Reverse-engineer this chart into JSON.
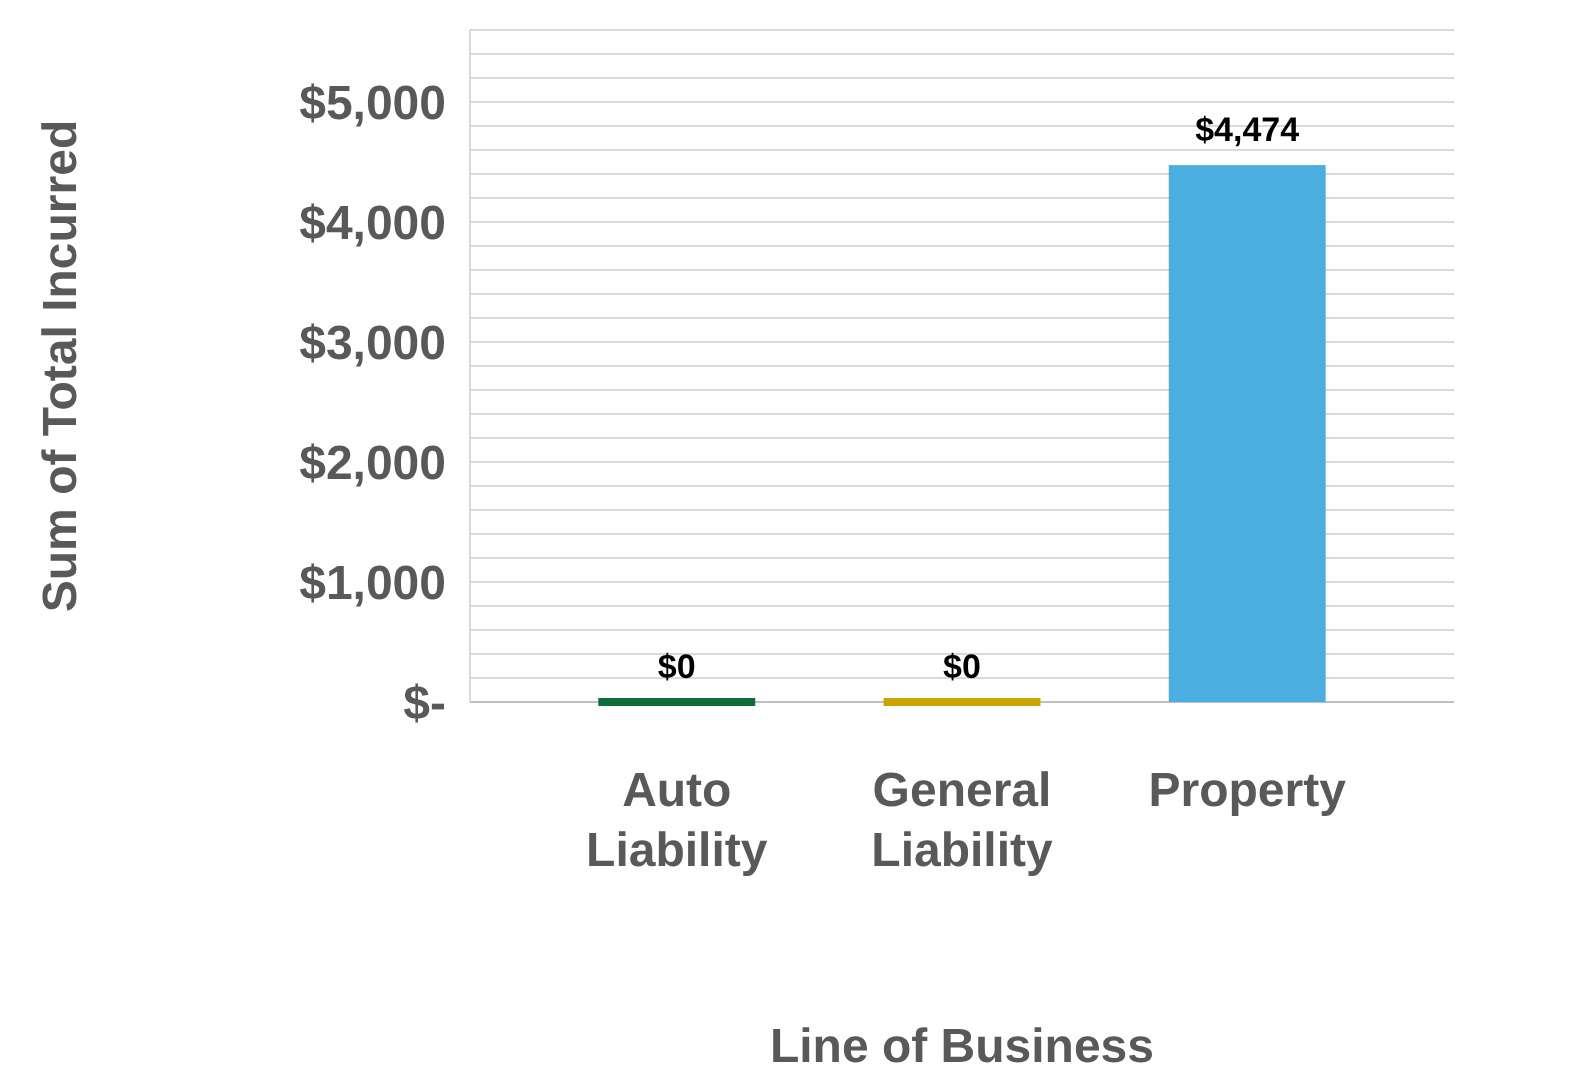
{
  "chart_data": {
    "type": "bar",
    "xlabel": "Line of Business",
    "ylabel": "Sum of Total Incurred",
    "categories": [
      "Auto Liability",
      "General Liability",
      "Property"
    ],
    "values": [
      0,
      0,
      4474
    ],
    "colors": [
      "#0e6b3a",
      "#c9a400",
      "#4aaee0"
    ],
    "value_labels": [
      "$0",
      "$0",
      "$4,474"
    ],
    "ylim": [
      0,
      5600
    ],
    "yticks": [
      {
        "value": 0,
        "label": "$-"
      },
      {
        "value": 200,
        "label": null
      },
      {
        "value": 400,
        "label": null
      },
      {
        "value": 600,
        "label": null
      },
      {
        "value": 800,
        "label": null
      },
      {
        "value": 1000,
        "label": "$1,000"
      },
      {
        "value": 1200,
        "label": null
      },
      {
        "value": 1400,
        "label": null
      },
      {
        "value": 1600,
        "label": null
      },
      {
        "value": 1800,
        "label": null
      },
      {
        "value": 2000,
        "label": "$2,000"
      },
      {
        "value": 2200,
        "label": null
      },
      {
        "value": 2400,
        "label": null
      },
      {
        "value": 2600,
        "label": null
      },
      {
        "value": 2800,
        "label": null
      },
      {
        "value": 3000,
        "label": "$3,000"
      },
      {
        "value": 3200,
        "label": null
      },
      {
        "value": 3400,
        "label": null
      },
      {
        "value": 3600,
        "label": null
      },
      {
        "value": 3800,
        "label": null
      },
      {
        "value": 4000,
        "label": "$4,000"
      },
      {
        "value": 4200,
        "label": null
      },
      {
        "value": 4400,
        "label": null
      },
      {
        "value": 4600,
        "label": null
      },
      {
        "value": 4800,
        "label": null
      },
      {
        "value": 5000,
        "label": "$5,000"
      },
      {
        "value": 5200,
        "label": null
      },
      {
        "value": 5400,
        "label": null
      },
      {
        "value": 5600,
        "label": null
      }
    ],
    "grid": "y"
  }
}
